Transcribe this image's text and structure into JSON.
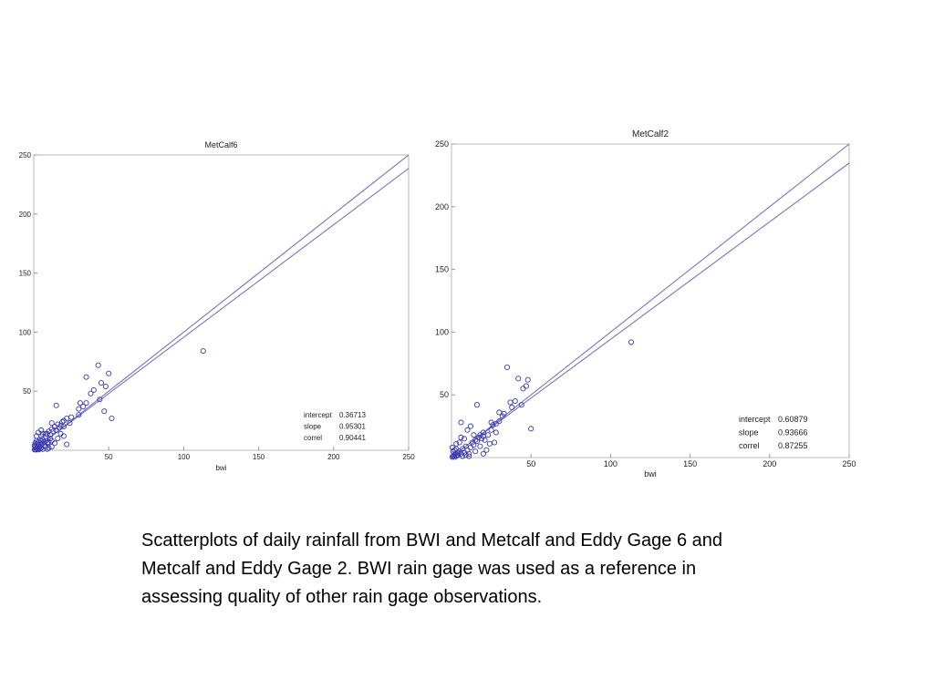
{
  "chart_data": [
    {
      "type": "scatter",
      "title": "MetCalf6",
      "xlabel": "bwi",
      "ylabel": "",
      "xlim": [
        0,
        250
      ],
      "ylim": [
        0,
        250
      ],
      "x_ticks": [
        50,
        100,
        150,
        200,
        250
      ],
      "y_ticks": [
        50,
        100,
        150,
        200,
        250
      ],
      "grid": false,
      "colors": {
        "marker": "#3b3bb0",
        "line": "#6a6ab8"
      },
      "lines": [
        {
          "intercept": 0,
          "slope": 1
        },
        {
          "intercept": 0.36713,
          "slope": 0.95301
        }
      ],
      "stats": [
        {
          "label": "intercept",
          "value": "0.36713"
        },
        {
          "label": "slope",
          "value": "0.95301"
        },
        {
          "label": "correl",
          "value": "0.90441"
        }
      ],
      "points": [
        [
          0.5,
          0.5
        ],
        [
          1,
          1
        ],
        [
          1.5,
          0.5
        ],
        [
          2,
          2
        ],
        [
          2.5,
          1
        ],
        [
          3,
          0.5
        ],
        [
          3.5,
          2
        ],
        [
          4,
          1
        ],
        [
          1,
          3
        ],
        [
          0.5,
          4
        ],
        [
          2,
          5
        ],
        [
          3,
          4
        ],
        [
          4,
          3
        ],
        [
          5,
          2
        ],
        [
          5,
          5
        ],
        [
          6,
          1
        ],
        [
          6,
          6
        ],
        [
          1,
          6
        ],
        [
          2,
          8
        ],
        [
          3,
          7
        ],
        [
          4,
          9
        ],
        [
          5,
          8
        ],
        [
          6,
          9
        ],
        [
          7,
          4
        ],
        [
          7,
          7
        ],
        [
          8,
          8
        ],
        [
          8,
          3
        ],
        [
          9,
          6
        ],
        [
          10,
          7
        ],
        [
          11,
          10
        ],
        [
          12,
          8
        ],
        [
          2,
          12
        ],
        [
          3,
          15
        ],
        [
          5,
          12
        ],
        [
          5,
          17
        ],
        [
          6,
          14
        ],
        [
          8,
          12
        ],
        [
          9,
          14
        ],
        [
          10,
          16
        ],
        [
          11,
          13
        ],
        [
          12,
          18
        ],
        [
          13,
          16
        ],
        [
          14,
          20
        ],
        [
          15,
          17
        ],
        [
          16,
          22
        ],
        [
          17,
          19
        ],
        [
          18,
          21
        ],
        [
          19,
          24
        ],
        [
          20,
          20
        ],
        [
          12,
          23
        ],
        [
          14,
          6
        ],
        [
          16,
          10
        ],
        [
          20,
          25
        ],
        [
          22,
          27
        ],
        [
          24,
          23
        ],
        [
          25,
          28
        ],
        [
          30,
          30
        ],
        [
          31,
          40
        ],
        [
          33,
          37
        ],
        [
          35,
          40
        ],
        [
          35,
          62
        ],
        [
          38,
          48
        ],
        [
          40,
          51
        ],
        [
          43,
          72
        ],
        [
          44,
          43
        ],
        [
          45,
          57
        ],
        [
          47,
          33
        ],
        [
          48,
          54
        ],
        [
          50,
          65
        ],
        [
          52,
          27
        ],
        [
          113,
          84
        ],
        [
          15,
          38
        ],
        [
          18,
          14
        ],
        [
          20,
          12
        ],
        [
          22,
          5
        ],
        [
          10,
          2
        ],
        [
          8,
          14
        ],
        [
          30,
          35
        ],
        [
          9,
          1
        ],
        [
          12,
          3
        ]
      ]
    },
    {
      "type": "scatter",
      "title": "MetCalf2",
      "xlabel": "bwi",
      "ylabel": "",
      "xlim": [
        0,
        250
      ],
      "ylim": [
        0,
        250
      ],
      "x_ticks": [
        50,
        100,
        150,
        200,
        250
      ],
      "y_ticks": [
        50,
        100,
        150,
        200,
        250
      ],
      "grid": false,
      "colors": {
        "marker": "#3b3bb0",
        "line": "#6a6ab8"
      },
      "lines": [
        {
          "intercept": 0,
          "slope": 1
        },
        {
          "intercept": 0.60879,
          "slope": 0.93666
        }
      ],
      "stats": [
        {
          "label": "intercept",
          "value": "0.60879"
        },
        {
          "label": "slope",
          "value": "0.93666"
        },
        {
          "label": "correl",
          "value": "0.87255"
        }
      ],
      "points": [
        [
          0.5,
          0.5
        ],
        [
          1,
          1
        ],
        [
          1.5,
          2
        ],
        [
          2,
          0.5
        ],
        [
          2.5,
          3
        ],
        [
          3,
          1
        ],
        [
          3.5,
          2
        ],
        [
          4,
          4
        ],
        [
          1,
          5
        ],
        [
          0.5,
          8
        ],
        [
          2,
          6
        ],
        [
          3,
          7
        ],
        [
          4,
          2
        ],
        [
          5,
          5
        ],
        [
          6,
          3
        ],
        [
          7,
          1
        ],
        [
          7,
          7
        ],
        [
          8,
          4
        ],
        [
          9,
          9
        ],
        [
          10,
          6
        ],
        [
          11,
          3
        ],
        [
          12,
          8
        ],
        [
          13,
          12
        ],
        [
          14,
          10
        ],
        [
          15,
          14
        ],
        [
          16,
          13
        ],
        [
          17,
          16
        ],
        [
          18,
          18
        ],
        [
          19,
          15
        ],
        [
          20,
          20
        ],
        [
          5,
          12
        ],
        [
          8,
          15
        ],
        [
          10,
          22
        ],
        [
          12,
          25
        ],
        [
          6,
          28
        ],
        [
          15,
          5
        ],
        [
          18,
          9
        ],
        [
          20,
          3
        ],
        [
          22,
          6
        ],
        [
          24,
          11
        ],
        [
          25,
          28
        ],
        [
          26,
          26
        ],
        [
          28,
          27
        ],
        [
          30,
          36
        ],
        [
          32,
          33
        ],
        [
          35,
          72
        ],
        [
          37,
          44
        ],
        [
          38,
          40
        ],
        [
          40,
          45
        ],
        [
          42,
          63
        ],
        [
          44,
          42
        ],
        [
          45,
          55
        ],
        [
          47,
          57
        ],
        [
          48,
          62
        ],
        [
          50,
          23
        ],
        [
          113,
          92
        ],
        [
          16,
          42
        ],
        [
          20,
          17
        ],
        [
          23,
          18
        ],
        [
          25,
          22
        ],
        [
          9,
          2
        ],
        [
          11,
          1
        ],
        [
          14,
          18
        ],
        [
          3,
          11
        ],
        [
          27,
          12
        ],
        [
          30,
          29
        ],
        [
          33,
          35
        ],
        [
          21,
          14
        ],
        [
          28,
          20
        ],
        [
          6,
          16
        ]
      ]
    }
  ],
  "caption": "Scatterplots of daily rainfall from BWI and Metcalf and Eddy Gage 6 and Metcalf and Eddy Gage 2.  BWI rain gage was used as a reference in assessing quality of other rain gage observations."
}
